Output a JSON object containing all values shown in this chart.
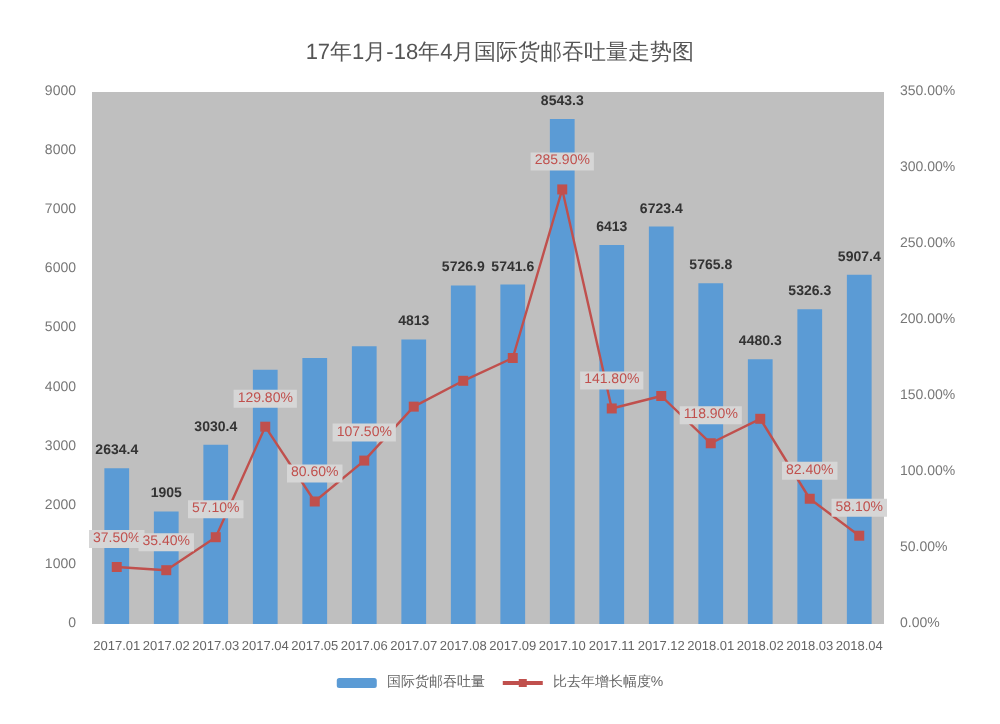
{
  "chart_data": {
    "type": "bar",
    "title": "17年1月-18年4月国际货邮吞吐量走势图",
    "categories": [
      "2017.01",
      "2017.02",
      "2017.03",
      "2017.04",
      "2017.05",
      "2017.06",
      "2017.07",
      "2017.08",
      "2017.09",
      "2017.10",
      "2017.11",
      "2017.12",
      "2018.01",
      "2018.02",
      "2018.03",
      "2018.04"
    ],
    "series": [
      {
        "name": "国际货邮吞吐量",
        "color": "#5b9bd5",
        "values": [
          2634.4,
          1905,
          3030.4,
          4300,
          4500,
          4700,
          4813,
          5726.9,
          5741.6,
          8543.3,
          6413,
          6723.4,
          5765.8,
          4480.3,
          5326.3,
          5907.4
        ],
        "value_labels": [
          "2634.4",
          "1905",
          "3030.4",
          null,
          null,
          null,
          "4813",
          "5726.9",
          "5741.6",
          "8543.3",
          "6413",
          "6723.4",
          "5765.8",
          "4480.3",
          "5326.3",
          "5907.4"
        ]
      },
      {
        "name": "比去年增长幅度%",
        "type": "line",
        "axis": "y2",
        "color": "#c0504d",
        "marker": "square",
        "values": [
          37.5,
          35.4,
          57.1,
          129.8,
          80.6,
          107.5,
          143,
          160,
          175,
          285.9,
          141.8,
          150,
          118.9,
          135,
          82.4,
          58.1
        ],
        "value_labels": [
          "37.50%",
          "35.40%",
          "57.10%",
          "129.80%",
          "80.60%",
          "107.50%",
          null,
          null,
          null,
          "285.90%",
          "141.80%",
          null,
          "118.90%",
          null,
          "82.40%",
          "58.10%"
        ]
      }
    ],
    "ylim": [
      0,
      9000
    ],
    "yticks": [
      0,
      1000,
      2000,
      3000,
      4000,
      5000,
      6000,
      7000,
      8000,
      9000
    ],
    "y2lim": [
      0,
      350
    ],
    "y2ticks": [
      {
        "value": 0,
        "label": "0.00%"
      },
      {
        "value": 50,
        "label": "50.00%"
      },
      {
        "value": 100,
        "label": "100.00%"
      },
      {
        "value": 150,
        "label": "150.00%"
      },
      {
        "value": 200,
        "label": "200.00%"
      },
      {
        "value": 250,
        "label": "250.00%"
      },
      {
        "value": 300,
        "label": "300.00%"
      },
      {
        "value": 350,
        "label": "350.00%"
      }
    ],
    "legend": "bottom",
    "grid": false
  }
}
